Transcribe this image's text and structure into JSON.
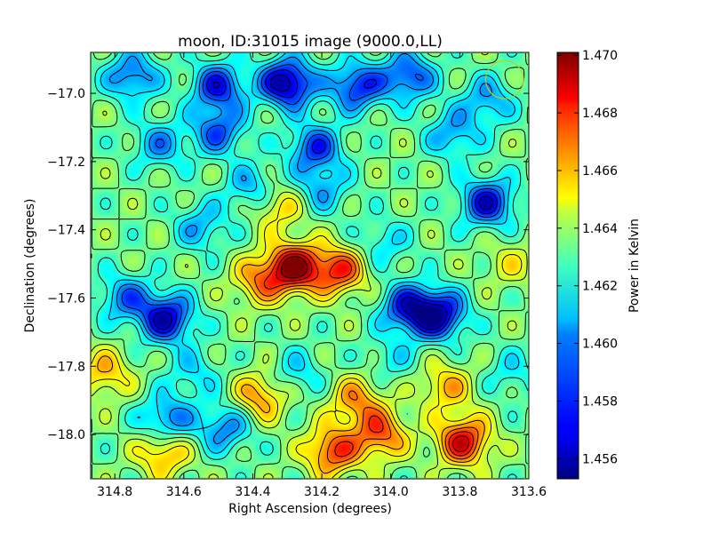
{
  "chart_data": {
    "type": "heatmap",
    "title": "moon, ID:31015 image (9000.0,LL)",
    "xlabel": "Right Ascension (degrees)",
    "ylabel": "Declination (degrees)",
    "colorbar_label": "Power in Kelvin",
    "colormap": "jet",
    "xlim": [
      314.87,
      313.6
    ],
    "ylim": [
      -18.13,
      -16.88
    ],
    "x_ticks": [
      314.8,
      314.6,
      314.4,
      314.2,
      314.0,
      313.8,
      313.6
    ],
    "x_tick_labels": [
      "314.8",
      "314.6",
      "314.4",
      "314.2",
      "314.0",
      "313.8",
      "313.6"
    ],
    "y_ticks": [
      -17.0,
      -17.2,
      -17.4,
      -17.6,
      -17.8,
      -18.0
    ],
    "y_tick_labels": [
      "−17.0",
      "−17.2",
      "−17.4",
      "−17.6",
      "−17.8",
      "−18.0"
    ],
    "color_range": [
      1.4553,
      1.4701
    ],
    "colorbar_ticks": [
      1.456,
      1.458,
      1.46,
      1.462,
      1.464,
      1.466,
      1.468,
      1.47
    ],
    "colorbar_tick_labels": [
      "1.456",
      "1.458",
      "1.460",
      "1.462",
      "1.464",
      "1.466",
      "1.468",
      "1.470"
    ],
    "background_level": 1.4625,
    "features": [
      {
        "ra": 314.28,
        "dec": -17.51,
        "power": 1.4695
      },
      {
        "ra": 314.15,
        "dec": -17.52,
        "power": 1.4675
      },
      {
        "ra": 314.38,
        "dec": -17.55,
        "power": 1.466
      },
      {
        "ra": 313.79,
        "dec": -18.02,
        "power": 1.4685
      },
      {
        "ra": 314.03,
        "dec": -18.0,
        "power": 1.467
      },
      {
        "ra": 314.17,
        "dec": -18.05,
        "power": 1.4675
      },
      {
        "ra": 314.1,
        "dec": -17.9,
        "power": 1.466
      },
      {
        "ra": 314.83,
        "dec": -17.82,
        "power": 1.4655
      },
      {
        "ra": 314.66,
        "dec": -18.05,
        "power": 1.4662
      },
      {
        "ra": 314.38,
        "dec": -17.89,
        "power": 1.4662
      },
      {
        "ra": 314.33,
        "dec": -17.33,
        "power": 1.4655
      },
      {
        "ra": 313.84,
        "dec": -17.86,
        "power": 1.4655
      },
      {
        "ra": 314.3,
        "dec": -16.97,
        "power": 1.4555
      },
      {
        "ra": 314.5,
        "dec": -16.98,
        "power": 1.4575
      },
      {
        "ra": 314.1,
        "dec": -16.98,
        "power": 1.4575
      },
      {
        "ra": 313.95,
        "dec": -16.95,
        "power": 1.458
      },
      {
        "ra": 314.75,
        "dec": -16.95,
        "power": 1.4585
      },
      {
        "ra": 313.72,
        "dec": -17.02,
        "power": 1.4595
      },
      {
        "ra": 314.65,
        "dec": -17.66,
        "power": 1.4565
      },
      {
        "ra": 313.86,
        "dec": -17.65,
        "power": 1.4565
      },
      {
        "ra": 313.95,
        "dec": -17.63,
        "power": 1.4575
      },
      {
        "ra": 313.72,
        "dec": -17.32,
        "power": 1.457
      },
      {
        "ra": 314.22,
        "dec": -17.16,
        "power": 1.458
      },
      {
        "ra": 314.5,
        "dec": -17.11,
        "power": 1.4585
      },
      {
        "ra": 314.67,
        "dec": -17.15,
        "power": 1.4595
      },
      {
        "ra": 313.82,
        "dec": -17.12,
        "power": 1.4595
      },
      {
        "ra": 314.77,
        "dec": -17.6,
        "power": 1.459
      },
      {
        "ra": 314.65,
        "dec": -17.96,
        "power": 1.4585
      },
      {
        "ra": 314.48,
        "dec": -17.98,
        "power": 1.459
      },
      {
        "ra": 314.4,
        "dec": -17.28,
        "power": 1.4595
      },
      {
        "ra": 314.55,
        "dec": -17.39,
        "power": 1.4598
      },
      {
        "ra": 314.2,
        "dec": -17.28,
        "power": 1.4598
      },
      {
        "ra": 314.02,
        "dec": -17.44,
        "power": 1.4605
      },
      {
        "ra": 314.27,
        "dec": -17.82,
        "power": 1.4605
      },
      {
        "ra": 314.0,
        "dec": -17.78,
        "power": 1.461
      },
      {
        "ra": 314.57,
        "dec": -17.82,
        "power": 1.4605
      },
      {
        "ra": 313.65,
        "dec": -17.82,
        "power": 1.4608
      },
      {
        "ra": 313.65,
        "dec": -17.5,
        "power": 1.4642
      }
    ],
    "beam_marker": {
      "ra": 313.67,
      "dec": -16.96,
      "radius_deg": 0.055,
      "color": "#c8c820"
    },
    "contour_color": "#000000",
    "grid": false
  }
}
